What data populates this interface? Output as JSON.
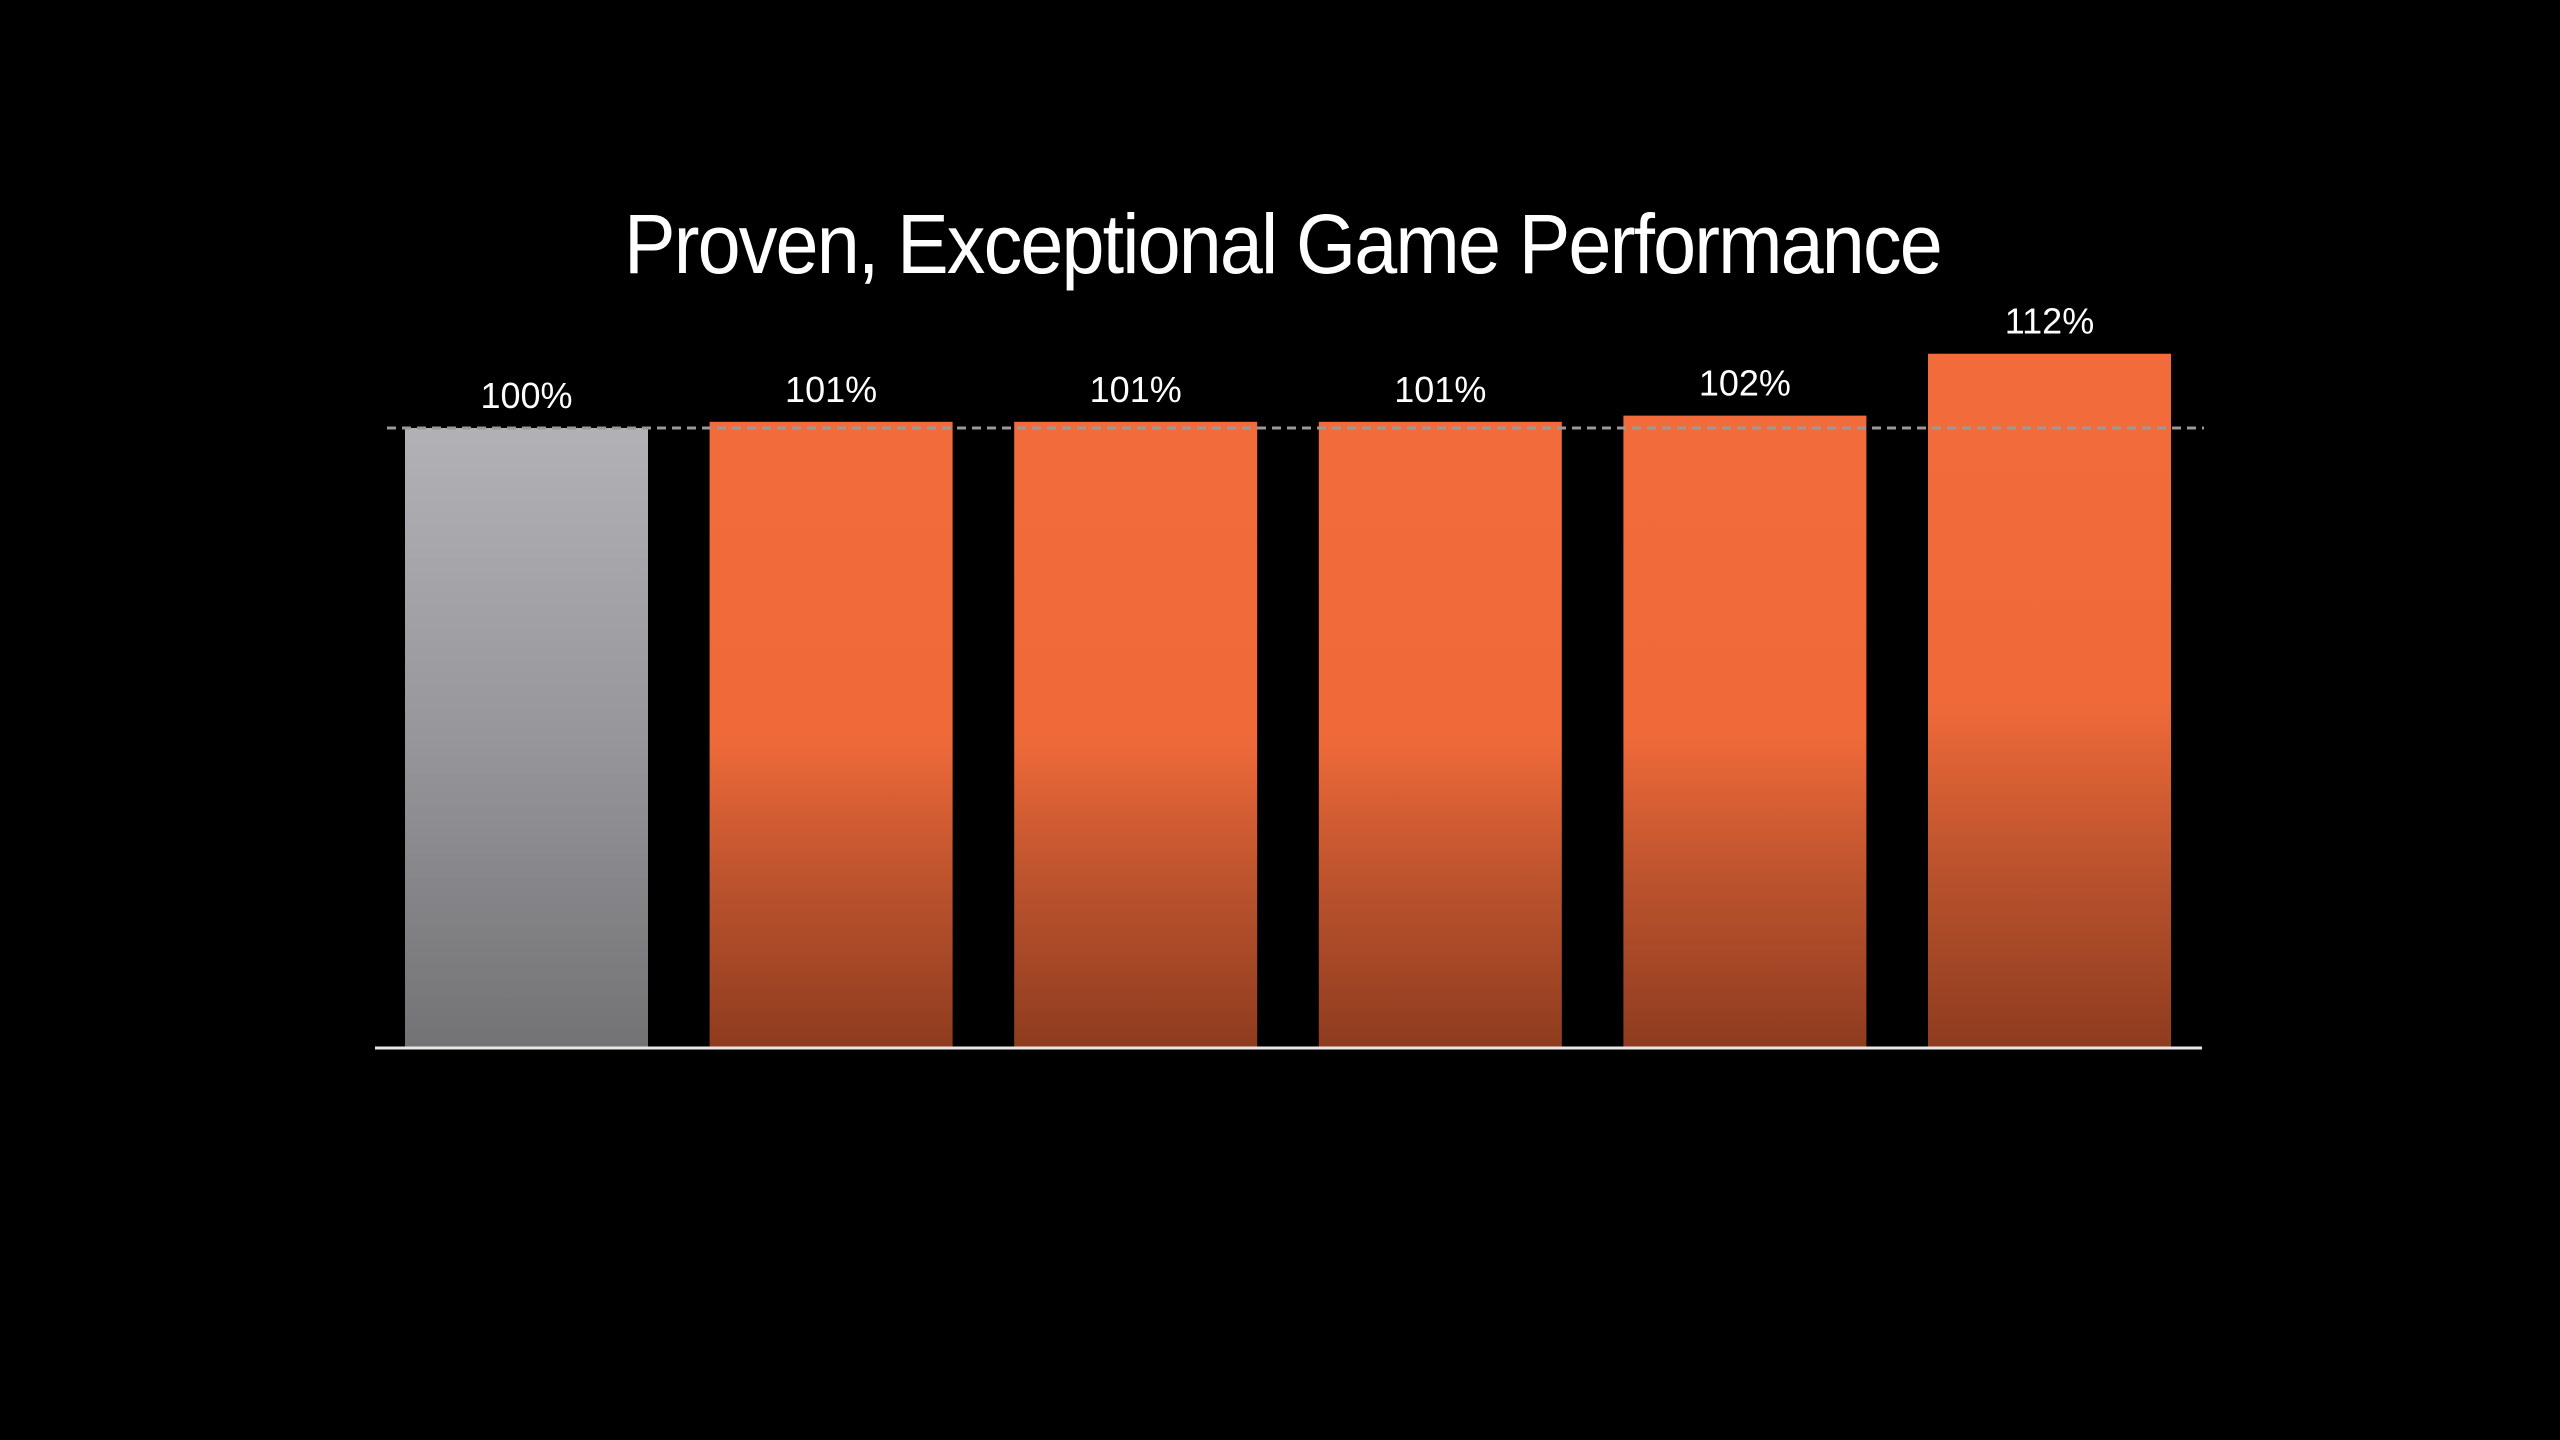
{
  "chart_data": {
    "type": "bar",
    "title": "Proven, Exceptional Game Performance",
    "categories": [
      "",
      "",
      "",
      "",
      "",
      ""
    ],
    "values": [
      100,
      101,
      101,
      101,
      102,
      112
    ],
    "data_labels": [
      "100%",
      "101%",
      "101%",
      "101%",
      "102%",
      "112%"
    ],
    "xlabel": "",
    "ylabel": "",
    "ylim": [
      0,
      112
    ],
    "reference_line": 100,
    "grid": false,
    "colors": {
      "baseline": "#a9a8ac",
      "others": "#f26b3a",
      "background": "#000000",
      "reference_line": "#9a9a9a"
    }
  }
}
